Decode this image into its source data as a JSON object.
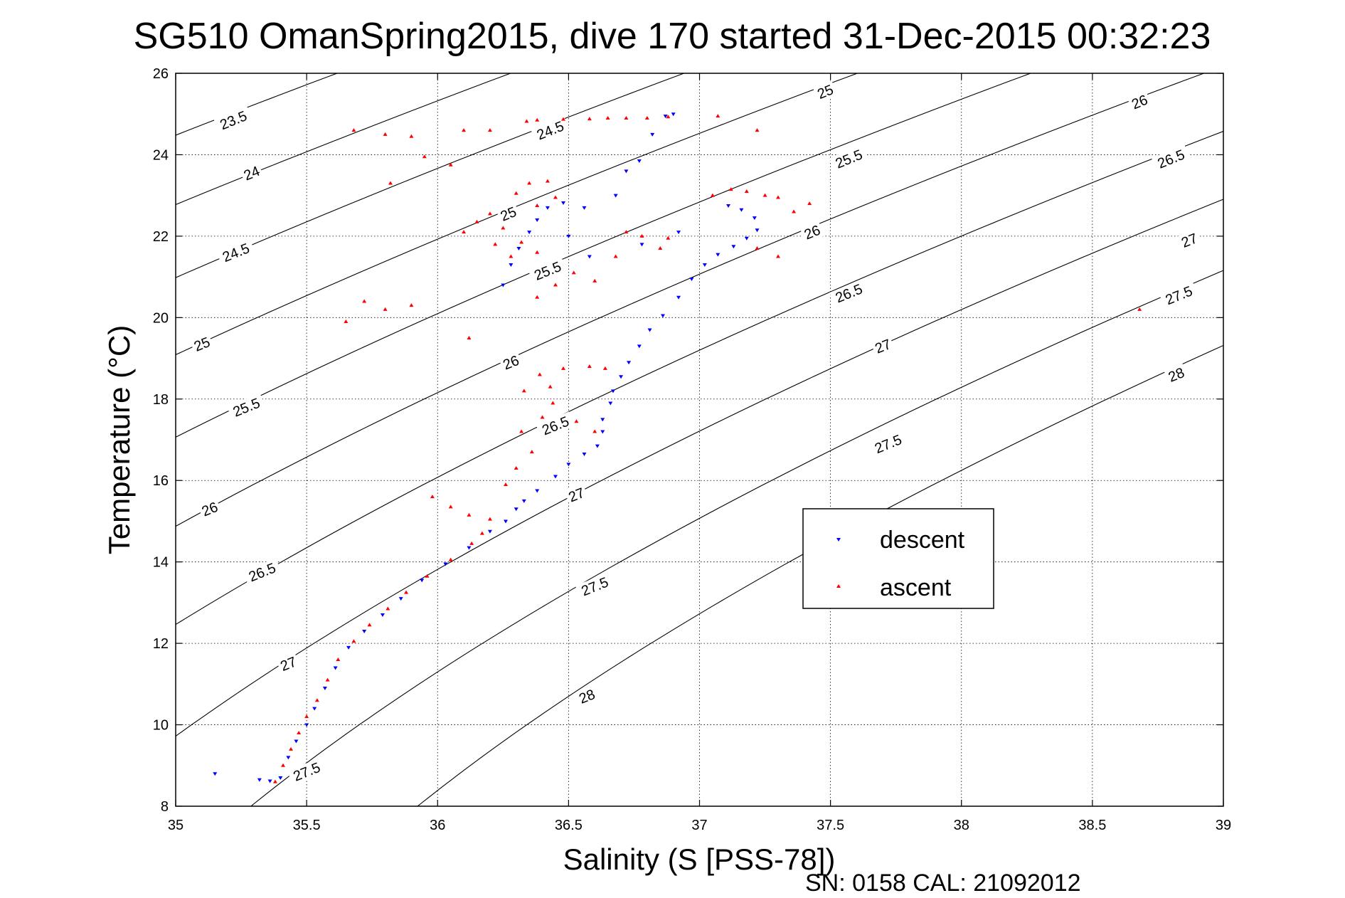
{
  "chart_data": {
    "type": "scatter",
    "title": "SG510 OmanSpring2015, dive 170 started 31-Dec-2015 00:32:23",
    "xlabel": "Salinity (S [PSS-78])",
    "ylabel": "Temperature (°C)",
    "xlim": [
      35,
      39
    ],
    "ylim": [
      8,
      26
    ],
    "xticks": [
      35,
      35.5,
      36,
      36.5,
      37,
      37.5,
      38,
      38.5,
      39
    ],
    "yticks": [
      8,
      10,
      12,
      14,
      16,
      18,
      20,
      22,
      24,
      26
    ],
    "xtick_labels": [
      "35",
      "35.5",
      "36",
      "36.5",
      "37",
      "37.5",
      "38",
      "38.5",
      "39"
    ],
    "ytick_labels": [
      "8",
      "10",
      "12",
      "14",
      "16",
      "18",
      "20",
      "22",
      "24",
      "26"
    ],
    "grid": true,
    "legend_position": "right",
    "footer": "SN: 0158  CAL: 21092012",
    "density_contours": {
      "levels": [
        23.5,
        24,
        24.5,
        25,
        25.5,
        26,
        26.5,
        27,
        27.5,
        28
      ],
      "label_text": [
        "23.5",
        "24",
        "24.5",
        "25",
        "25.5",
        "26",
        "26.5",
        "27",
        "27.5",
        "28"
      ],
      "labels": [
        {
          "text": "23.5",
          "x": 35.22,
          "y": 24.85
        },
        {
          "text": "24",
          "x": 35.29,
          "y": 23.55
        },
        {
          "text": "24.5",
          "x": 35.23,
          "y": 21.6
        },
        {
          "text": "25",
          "x": 35.1,
          "y": 19.35
        },
        {
          "text": "25.5",
          "x": 35.27,
          "y": 17.8
        },
        {
          "text": "26",
          "x": 35.13,
          "y": 15.3
        },
        {
          "text": "26.5",
          "x": 35.33,
          "y": 13.75
        },
        {
          "text": "27",
          "x": 35.43,
          "y": 11.5
        },
        {
          "text": "27.5",
          "x": 35.5,
          "y": 8.85
        },
        {
          "text": "24.5",
          "x": 36.43,
          "y": 24.6
        },
        {
          "text": "25",
          "x": 36.27,
          "y": 22.55
        },
        {
          "text": "25.5",
          "x": 36.42,
          "y": 21.15
        },
        {
          "text": "26",
          "x": 36.28,
          "y": 18.9
        },
        {
          "text": "26.5",
          "x": 36.45,
          "y": 17.35
        },
        {
          "text": "27",
          "x": 36.53,
          "y": 15.65
        },
        {
          "text": "27.5",
          "x": 36.6,
          "y": 13.4
        },
        {
          "text": "28",
          "x": 36.57,
          "y": 10.7
        },
        {
          "text": "25",
          "x": 37.48,
          "y": 25.55
        },
        {
          "text": "25.5",
          "x": 37.57,
          "y": 23.9
        },
        {
          "text": "26",
          "x": 37.43,
          "y": 22.1
        },
        {
          "text": "26.5",
          "x": 37.57,
          "y": 20.6
        },
        {
          "text": "27",
          "x": 37.7,
          "y": 19.3
        },
        {
          "text": "27.5",
          "x": 37.72,
          "y": 16.9
        },
        {
          "text": "26",
          "x": 38.68,
          "y": 25.3
        },
        {
          "text": "26.5",
          "x": 38.8,
          "y": 23.9
        },
        {
          "text": "27",
          "x": 38.87,
          "y": 21.9
        },
        {
          "text": "27.5",
          "x": 38.83,
          "y": 20.55
        },
        {
          "text": "28",
          "x": 38.82,
          "y": 18.6
        }
      ]
    },
    "series": [
      {
        "name": "descent",
        "color": "#0000ff",
        "marker": "triangle-down",
        "points": [
          [
            35.15,
            8.8
          ],
          [
            35.32,
            8.65
          ],
          [
            35.36,
            8.62
          ],
          [
            35.4,
            8.7
          ],
          [
            35.43,
            9.2
          ],
          [
            35.46,
            9.6
          ],
          [
            35.5,
            10.0
          ],
          [
            35.53,
            10.4
          ],
          [
            35.57,
            10.9
          ],
          [
            35.61,
            11.4
          ],
          [
            35.66,
            11.9
          ],
          [
            35.72,
            12.3
          ],
          [
            35.79,
            12.7
          ],
          [
            35.86,
            13.1
          ],
          [
            35.94,
            13.55
          ],
          [
            36.03,
            13.95
          ],
          [
            36.12,
            14.35
          ],
          [
            36.2,
            14.75
          ],
          [
            36.26,
            15.0
          ],
          [
            36.3,
            15.3
          ],
          [
            36.33,
            15.5
          ],
          [
            36.38,
            15.75
          ],
          [
            36.45,
            16.1
          ],
          [
            36.5,
            16.4
          ],
          [
            36.56,
            16.65
          ],
          [
            36.61,
            16.85
          ],
          [
            36.63,
            17.2
          ],
          [
            36.63,
            17.5
          ],
          [
            36.66,
            17.9
          ],
          [
            36.67,
            18.2
          ],
          [
            36.7,
            18.55
          ],
          [
            36.73,
            18.9
          ],
          [
            36.77,
            19.3
          ],
          [
            36.81,
            19.7
          ],
          [
            36.86,
            20.05
          ],
          [
            36.92,
            20.5
          ],
          [
            36.97,
            20.95
          ],
          [
            37.02,
            21.3
          ],
          [
            37.07,
            21.55
          ],
          [
            37.13,
            21.75
          ],
          [
            37.18,
            21.95
          ],
          [
            37.22,
            22.15
          ],
          [
            37.21,
            22.45
          ],
          [
            37.16,
            22.65
          ],
          [
            37.11,
            22.75
          ],
          [
            36.92,
            22.1
          ],
          [
            36.78,
            21.8
          ],
          [
            36.58,
            21.5
          ],
          [
            36.5,
            22.0
          ],
          [
            36.56,
            22.7
          ],
          [
            36.48,
            22.82
          ],
          [
            36.42,
            22.7
          ],
          [
            36.38,
            22.4
          ],
          [
            36.35,
            22.1
          ],
          [
            36.31,
            21.7
          ],
          [
            36.28,
            21.3
          ],
          [
            36.25,
            20.8
          ],
          [
            36.68,
            23.0
          ],
          [
            36.72,
            23.6
          ],
          [
            36.77,
            23.85
          ],
          [
            36.82,
            24.5
          ],
          [
            36.87,
            24.95
          ],
          [
            36.9,
            25.0
          ]
        ]
      },
      {
        "name": "ascent",
        "color": "#ff0000",
        "marker": "triangle-up",
        "points": [
          [
            35.38,
            8.6
          ],
          [
            35.41,
            9.0
          ],
          [
            35.44,
            9.4
          ],
          [
            35.47,
            9.8
          ],
          [
            35.5,
            10.2
          ],
          [
            35.54,
            10.6
          ],
          [
            35.58,
            11.1
          ],
          [
            35.62,
            11.6
          ],
          [
            35.68,
            12.05
          ],
          [
            35.74,
            12.45
          ],
          [
            35.81,
            12.85
          ],
          [
            35.88,
            13.25
          ],
          [
            35.96,
            13.65
          ],
          [
            36.05,
            14.05
          ],
          [
            36.13,
            14.45
          ],
          [
            36.17,
            14.7
          ],
          [
            35.98,
            15.6
          ],
          [
            36.05,
            15.35
          ],
          [
            36.12,
            15.15
          ],
          [
            36.2,
            15.05
          ],
          [
            36.26,
            15.9
          ],
          [
            36.3,
            16.3
          ],
          [
            36.36,
            16.7
          ],
          [
            36.32,
            17.2
          ],
          [
            36.4,
            17.55
          ],
          [
            36.44,
            17.9
          ],
          [
            36.33,
            18.2
          ],
          [
            36.39,
            18.6
          ],
          [
            36.43,
            18.3
          ],
          [
            36.53,
            17.45
          ],
          [
            36.6,
            17.2
          ],
          [
            36.48,
            18.75
          ],
          [
            36.58,
            18.8
          ],
          [
            36.64,
            18.75
          ],
          [
            35.65,
            19.9
          ],
          [
            35.72,
            20.4
          ],
          [
            35.8,
            20.2
          ],
          [
            35.9,
            20.3
          ],
          [
            36.12,
            19.5
          ],
          [
            36.38,
            20.5
          ],
          [
            36.45,
            20.8
          ],
          [
            36.52,
            21.1
          ],
          [
            36.6,
            20.9
          ],
          [
            36.1,
            22.1
          ],
          [
            36.15,
            22.35
          ],
          [
            36.2,
            22.55
          ],
          [
            36.25,
            22.2
          ],
          [
            36.22,
            21.8
          ],
          [
            36.28,
            21.5
          ],
          [
            36.32,
            21.85
          ],
          [
            36.38,
            21.6
          ],
          [
            36.3,
            23.05
          ],
          [
            36.35,
            23.3
          ],
          [
            36.42,
            23.35
          ],
          [
            36.45,
            22.95
          ],
          [
            36.38,
            22.75
          ],
          [
            35.68,
            24.6
          ],
          [
            35.8,
            24.5
          ],
          [
            35.9,
            24.45
          ],
          [
            35.95,
            23.95
          ],
          [
            36.05,
            23.75
          ],
          [
            35.82,
            23.3
          ],
          [
            36.1,
            24.6
          ],
          [
            36.2,
            24.6
          ],
          [
            36.34,
            24.82
          ],
          [
            36.38,
            24.85
          ],
          [
            36.48,
            24.87
          ],
          [
            36.58,
            24.88
          ],
          [
            36.65,
            24.9
          ],
          [
            36.72,
            24.9
          ],
          [
            36.8,
            24.9
          ],
          [
            36.88,
            24.93
          ],
          [
            37.07,
            24.95
          ],
          [
            37.22,
            24.6
          ],
          [
            36.72,
            22.1
          ],
          [
            36.78,
            22.0
          ],
          [
            36.85,
            21.7
          ],
          [
            36.88,
            21.95
          ],
          [
            36.68,
            21.5
          ],
          [
            37.05,
            23.0
          ],
          [
            37.12,
            23.15
          ],
          [
            37.18,
            23.1
          ],
          [
            37.25,
            23.0
          ],
          [
            37.3,
            22.95
          ],
          [
            37.36,
            22.6
          ],
          [
            37.42,
            22.8
          ],
          [
            37.3,
            21.5
          ],
          [
            37.22,
            21.7
          ],
          [
            38.68,
            20.2
          ]
        ]
      }
    ]
  }
}
